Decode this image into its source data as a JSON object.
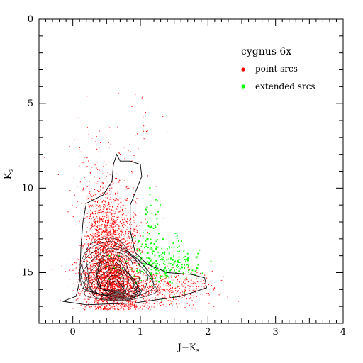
{
  "chart_data": {
    "type": "scatter",
    "title": "",
    "xlabel": "J−K",
    "xlabel_sub": "s",
    "ylabel": "K",
    "ylabel_sub": "s",
    "xlim": [
      -0.5,
      4
    ],
    "ylim": [
      18,
      0
    ],
    "y_inverted": true,
    "x_ticks": [
      "0",
      "1",
      "2",
      "3",
      "4"
    ],
    "x_tick_values": [
      0,
      1,
      2,
      3,
      4
    ],
    "y_ticks": [
      "0",
      "5",
      "10",
      "15"
    ],
    "y_tick_values": [
      0,
      5,
      10,
      15
    ],
    "grid": false,
    "legend": {
      "title": "cygnus 6x",
      "placement": "top-right",
      "entries": [
        {
          "label": "point srcs",
          "color": "#ff0000"
        },
        {
          "label": "extended srcs",
          "color": "#00ff00"
        }
      ]
    },
    "series": [
      {
        "name": "point srcs",
        "color": "#ff0000",
        "clusters": [
          {
            "x": 0.58,
            "y": 15.6,
            "sx": 0.22,
            "sy": 0.9,
            "n": 1800
          },
          {
            "x": 0.5,
            "y": 14.1,
            "sx": 0.16,
            "sy": 1.4,
            "n": 900
          },
          {
            "x": 0.45,
            "y": 12.4,
            "sx": 0.14,
            "sy": 1.4,
            "n": 500
          },
          {
            "x": 0.75,
            "y": 12.9,
            "sx": 0.14,
            "sy": 1.2,
            "n": 350
          },
          {
            "x": 1.15,
            "y": 16.0,
            "sx": 0.35,
            "sy": 0.6,
            "n": 450
          },
          {
            "x": 1.6,
            "y": 15.9,
            "sx": 0.35,
            "sy": 0.5,
            "n": 150
          },
          {
            "x": 0.45,
            "y": 9.8,
            "sx": 0.25,
            "sy": 1.5,
            "n": 140
          },
          {
            "x": 0.75,
            "y": 7.0,
            "sx": 0.5,
            "sy": 1.6,
            "n": 45
          }
        ]
      },
      {
        "name": "extended srcs",
        "color": "#00ff00",
        "clusters": [
          {
            "x": 1.3,
            "y": 14.3,
            "sx": 0.22,
            "sy": 0.9,
            "n": 190
          },
          {
            "x": 1.15,
            "y": 12.1,
            "sx": 0.1,
            "sy": 0.8,
            "n": 40
          },
          {
            "x": 1.7,
            "y": 14.5,
            "sx": 0.15,
            "sy": 0.45,
            "n": 40
          },
          {
            "x": 0.7,
            "y": 14.8,
            "sx": 0.12,
            "sy": 0.6,
            "n": 15
          }
        ]
      }
    ],
    "contours": {
      "color": "#000000",
      "outer": [
        [
          -0.15,
          16.7
        ],
        [
          0.05,
          16.4
        ],
        [
          0.1,
          15.5
        ],
        [
          0.12,
          13.5
        ],
        [
          0.15,
          12.0
        ],
        [
          0.2,
          10.9
        ],
        [
          0.45,
          10.4
        ],
        [
          0.58,
          9.6
        ],
        [
          0.6,
          8.6
        ],
        [
          0.65,
          8.0
        ],
        [
          0.7,
          8.4
        ],
        [
          0.85,
          8.4
        ],
        [
          1.0,
          8.6
        ],
        [
          1.02,
          9.3
        ],
        [
          0.95,
          10.0
        ],
        [
          0.85,
          11.0
        ],
        [
          0.85,
          12.5
        ],
        [
          0.92,
          13.8
        ],
        [
          1.1,
          14.5
        ],
        [
          1.4,
          15.0
        ],
        [
          1.75,
          15.1
        ],
        [
          1.95,
          15.3
        ],
        [
          1.98,
          15.9
        ],
        [
          1.6,
          16.4
        ],
        [
          0.9,
          16.8
        ],
        [
          0.2,
          16.9
        ],
        [
          -0.15,
          16.7
        ]
      ],
      "center": [
        0.62,
        15.9
      ],
      "levels": 14
    }
  }
}
